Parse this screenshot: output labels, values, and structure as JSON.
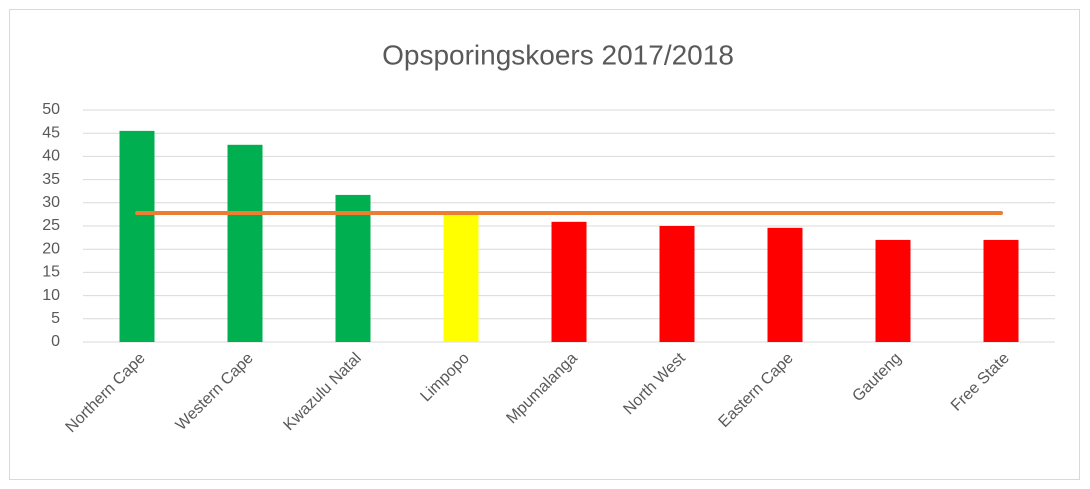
{
  "chart_data": {
    "type": "bar",
    "title": "Opsporingskoers 2017/2018",
    "categories": [
      "Northern Cape",
      "Western Cape",
      "Kwazulu Natal",
      "Limpopo",
      "Mpumalanga",
      "North West",
      "Eastern Cape",
      "Gauteng",
      "Free State"
    ],
    "series": [
      {
        "type": "bar",
        "colors": [
          "#00b050",
          "#00b050",
          "#00b050",
          "#ffff00",
          "#ff0000",
          "#ff0000",
          "#ff0000",
          "#ff0000",
          "#ff0000"
        ],
        "values": [
          45.5,
          42.5,
          31.7,
          27.8,
          25.9,
          25.0,
          24.6,
          22.0,
          22.0
        ]
      },
      {
        "type": "line",
        "color": "#ed7d31",
        "values": [
          27.8,
          27.8,
          27.8,
          27.8,
          27.8,
          27.8,
          27.8,
          27.8,
          27.8
        ]
      }
    ],
    "ylim": [
      0,
      50
    ],
    "yticks": [
      0,
      5,
      10,
      15,
      20,
      25,
      30,
      35,
      40,
      45,
      50
    ],
    "grid": true
  }
}
